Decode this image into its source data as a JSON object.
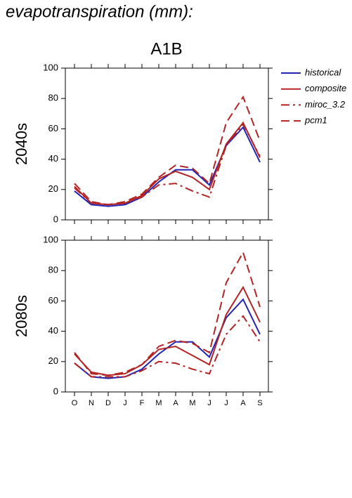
{
  "header": {
    "title": "evapotranspiration (mm):",
    "subtitle": "A1B"
  },
  "chart_data": [
    {
      "type": "line",
      "ylabel": "2040s",
      "ylim": [
        0,
        100
      ],
      "yticks": [
        0,
        20,
        40,
        60,
        80,
        100
      ],
      "series": [
        {
          "name": "historical",
          "color": "#2323b4",
          "dash": "solid",
          "values": [
            19,
            10,
            9,
            10,
            15,
            25,
            33,
            33,
            23,
            49,
            61,
            38
          ]
        },
        {
          "name": "composite",
          "color": "#b42323",
          "dash": "solid",
          "values": [
            22,
            11,
            10,
            11,
            16,
            27,
            32,
            28,
            20,
            50,
            64,
            41
          ]
        },
        {
          "name": "miroc_3.2",
          "color": "#b42323",
          "dash": "dashdot",
          "values": [
            21,
            11,
            10,
            11,
            15,
            23,
            24,
            19,
            15,
            49,
            63,
            42
          ]
        },
        {
          "name": "pcm1",
          "color": "#b42323",
          "dash": "dash",
          "values": [
            24,
            12,
            10,
            12,
            17,
            28,
            36,
            34,
            24,
            64,
            81,
            52
          ]
        }
      ]
    },
    {
      "type": "line",
      "ylabel": "2080s",
      "ylim": [
        0,
        100
      ],
      "yticks": [
        0,
        20,
        40,
        60,
        80,
        100
      ],
      "categories": [
        "O",
        "N",
        "D",
        "J",
        "F",
        "M",
        "A",
        "M",
        "J",
        "J",
        "A",
        "S"
      ],
      "series": [
        {
          "color": "#2323b4",
          "dash": "solid",
          "values": [
            19,
            10,
            9,
            10,
            15,
            25,
            33,
            33,
            23,
            49,
            61,
            38
          ]
        },
        {
          "color": "#b42323",
          "dash": "solid",
          "values": [
            25,
            13,
            11,
            12,
            18,
            28,
            30,
            24,
            18,
            51,
            69,
            46
          ]
        },
        {
          "color": "#b42323",
          "dash": "dashdot",
          "values": [
            19,
            10,
            10,
            10,
            14,
            20,
            19,
            15,
            12,
            38,
            50,
            33
          ]
        },
        {
          "color": "#b42323",
          "dash": "dash",
          "values": [
            26,
            12,
            11,
            13,
            18,
            30,
            34,
            32,
            26,
            72,
            92,
            56
          ]
        }
      ]
    }
  ]
}
